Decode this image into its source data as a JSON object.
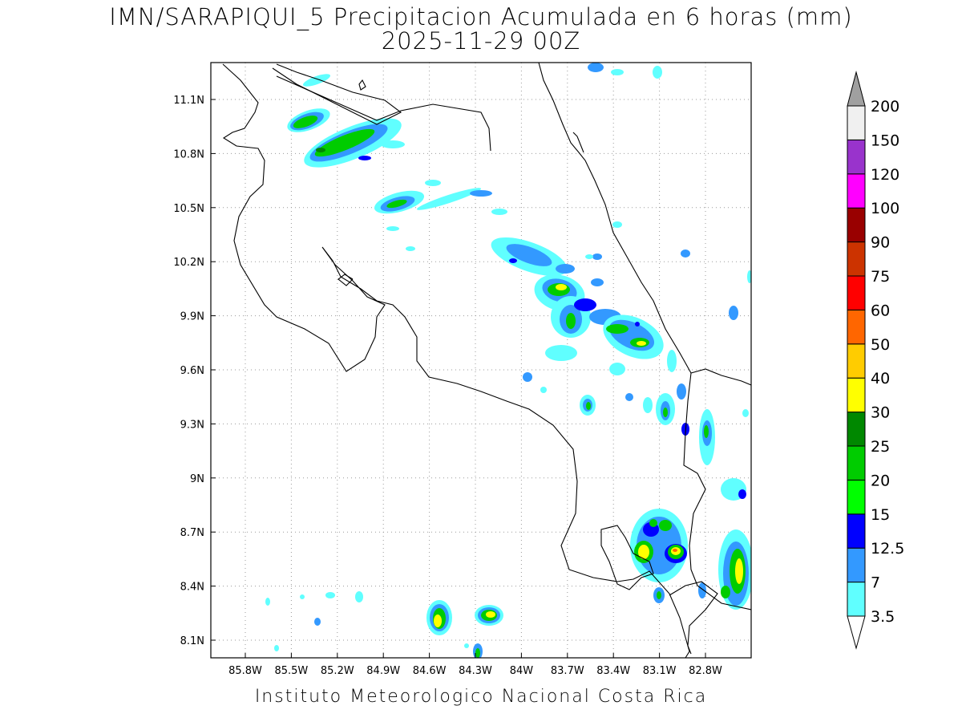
{
  "header": {
    "title": "IMN/SARAPIQUI_5 Precipitacion Acumulada en 6 horas (mm)",
    "valid_time": "2025-11-29 00Z"
  },
  "footer": {
    "credit": "Instituto Meteorologico Nacional Costa Rica"
  },
  "map": {
    "lon_ticks": [
      "85.8W",
      "85.5W",
      "85.2W",
      "84.9W",
      "84.6W",
      "84.3W",
      "84W",
      "83.7W",
      "83.4W",
      "83.1W",
      "82.8W"
    ],
    "lat_ticks": [
      "11.1N",
      "10.8N",
      "10.5N",
      "10.2N",
      "9.9N",
      "9.6N",
      "9.3N",
      "9N",
      "8.7N",
      "8.4N",
      "8.1N"
    ],
    "lon_range": [
      -86.1,
      -82.4
    ],
    "lat_range": [
      8.0,
      11.3
    ],
    "grid": "dotted"
  },
  "colorbar": {
    "units": "mm",
    "labels": [
      "3.5",
      "7",
      "12.5",
      "15",
      "20",
      "25",
      "30",
      "40",
      "50",
      "60",
      "75",
      "90",
      "100",
      "120",
      "150",
      "200"
    ],
    "colors": [
      "#60ffff",
      "#3399ff",
      "#0000ff",
      "#00ff00",
      "#00cc00",
      "#008800",
      "#ffff00",
      "#ffcc00",
      "#ff6600",
      "#ff0000",
      "#cc3300",
      "#990000",
      "#ff00ff",
      "#9933cc",
      "#f0f0f0",
      "#a0a0a0"
    ]
  }
}
